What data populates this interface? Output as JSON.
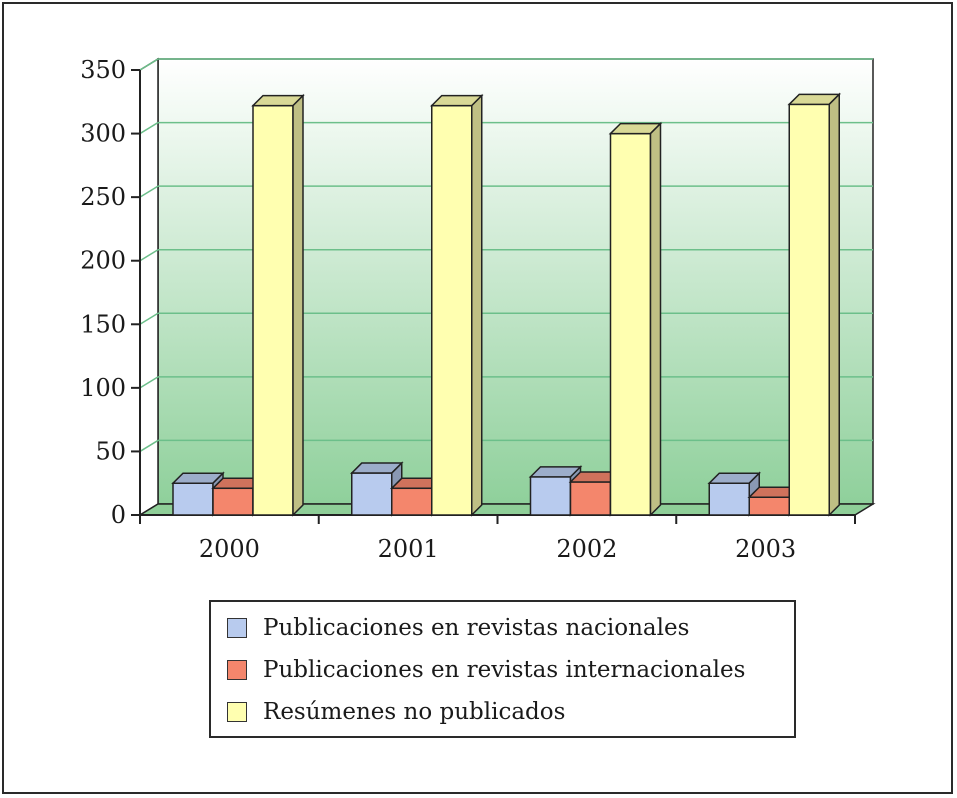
{
  "chart_data": {
    "type": "bar",
    "categories": [
      "2000",
      "2001",
      "2002",
      "2003"
    ],
    "series": [
      {
        "name": "Publicaciones en revistas nacionales",
        "values": [
          25,
          33,
          30,
          25
        ],
        "color": "#b8cbee"
      },
      {
        "name": "Publicaciones en revistas internacionales",
        "values": [
          21,
          21,
          26,
          14
        ],
        "color": "#f4866c"
      },
      {
        "name": "Resúmenes no publicados",
        "values": [
          322,
          322,
          300,
          323
        ],
        "color": "#ffffb0"
      }
    ],
    "yticks": [
      "0",
      "50",
      "100",
      "150",
      "200",
      "250",
      "300",
      "350"
    ],
    "ylim": [
      0,
      350
    ],
    "grid": true,
    "legend_position": "bottom",
    "colors": {
      "background_top": "#ffffff",
      "background_bottom": "#8fd09b",
      "gridline": "#6cbf8a",
      "floor": "#8fcf98"
    }
  }
}
